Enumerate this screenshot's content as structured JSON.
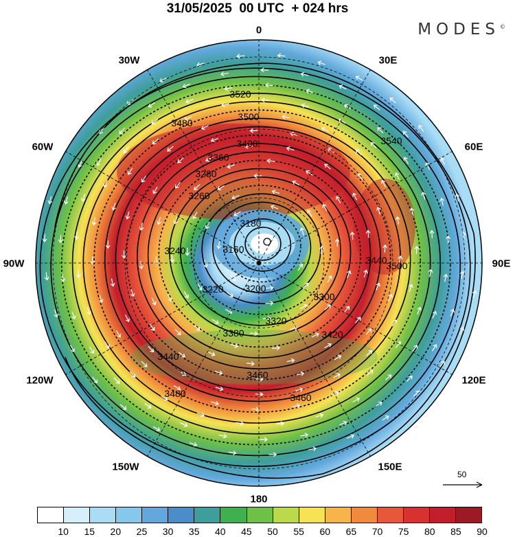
{
  "title": "31/05/2025  00 UTC  + 024 hrs",
  "brand": "MODES",
  "brand_mark": "©",
  "longitude_labels": {
    "lon_0": "0",
    "lon_30e": "30E",
    "lon_60e": "60E",
    "lon_90e": "90E",
    "lon_120e": "120E",
    "lon_150e": "150E",
    "lon_180": "180",
    "lon_150w": "150W",
    "lon_120w": "120W",
    "lon_90w": "90W",
    "lon_60w": "60W",
    "lon_30w": "30W"
  },
  "reference_vector": {
    "label": "50"
  },
  "colorbar": {
    "colors": [
      "#ffffff",
      "#d5f0fb",
      "#a9dcf5",
      "#86c7ec",
      "#62a8dc",
      "#4a8dc8",
      "#3e9e9c",
      "#3eb04e",
      "#6ec046",
      "#bcd94a",
      "#f6e253",
      "#f6b44a",
      "#f18a3c",
      "#e7573a",
      "#d9312f",
      "#c31e2c",
      "#9c1a24"
    ],
    "ticks": [
      "10",
      "15",
      "20",
      "25",
      "30",
      "35",
      "40",
      "45",
      "50",
      "55",
      "60",
      "65",
      "70",
      "75",
      "80",
      "85",
      "90"
    ]
  },
  "contour_labels": [
    "3520",
    "3480",
    "3500",
    "3400",
    "3360",
    "3280",
    "3260",
    "3180",
    "3160",
    "3240",
    "3220",
    "3200",
    "3300",
    "3320",
    "3380",
    "3420",
    "3440",
    "3460",
    "3540",
    "3440",
    "3500",
    "3480",
    "3460"
  ],
  "chart_data": {
    "type": "heatmap",
    "projection": "polar stereographic (north pole)",
    "field": "wind speed shading with geopotential height contours and wind vectors",
    "shading_levels": [
      10,
      15,
      20,
      25,
      30,
      35,
      40,
      45,
      50,
      55,
      60,
      65,
      70,
      75,
      80,
      85,
      90
    ],
    "contour_values": [
      3160,
      3180,
      3200,
      3220,
      3240,
      3260,
      3280,
      3300,
      3320,
      3360,
      3380,
      3400,
      3420,
      3440,
      3460,
      3480,
      3500,
      3520,
      3540
    ]
  }
}
